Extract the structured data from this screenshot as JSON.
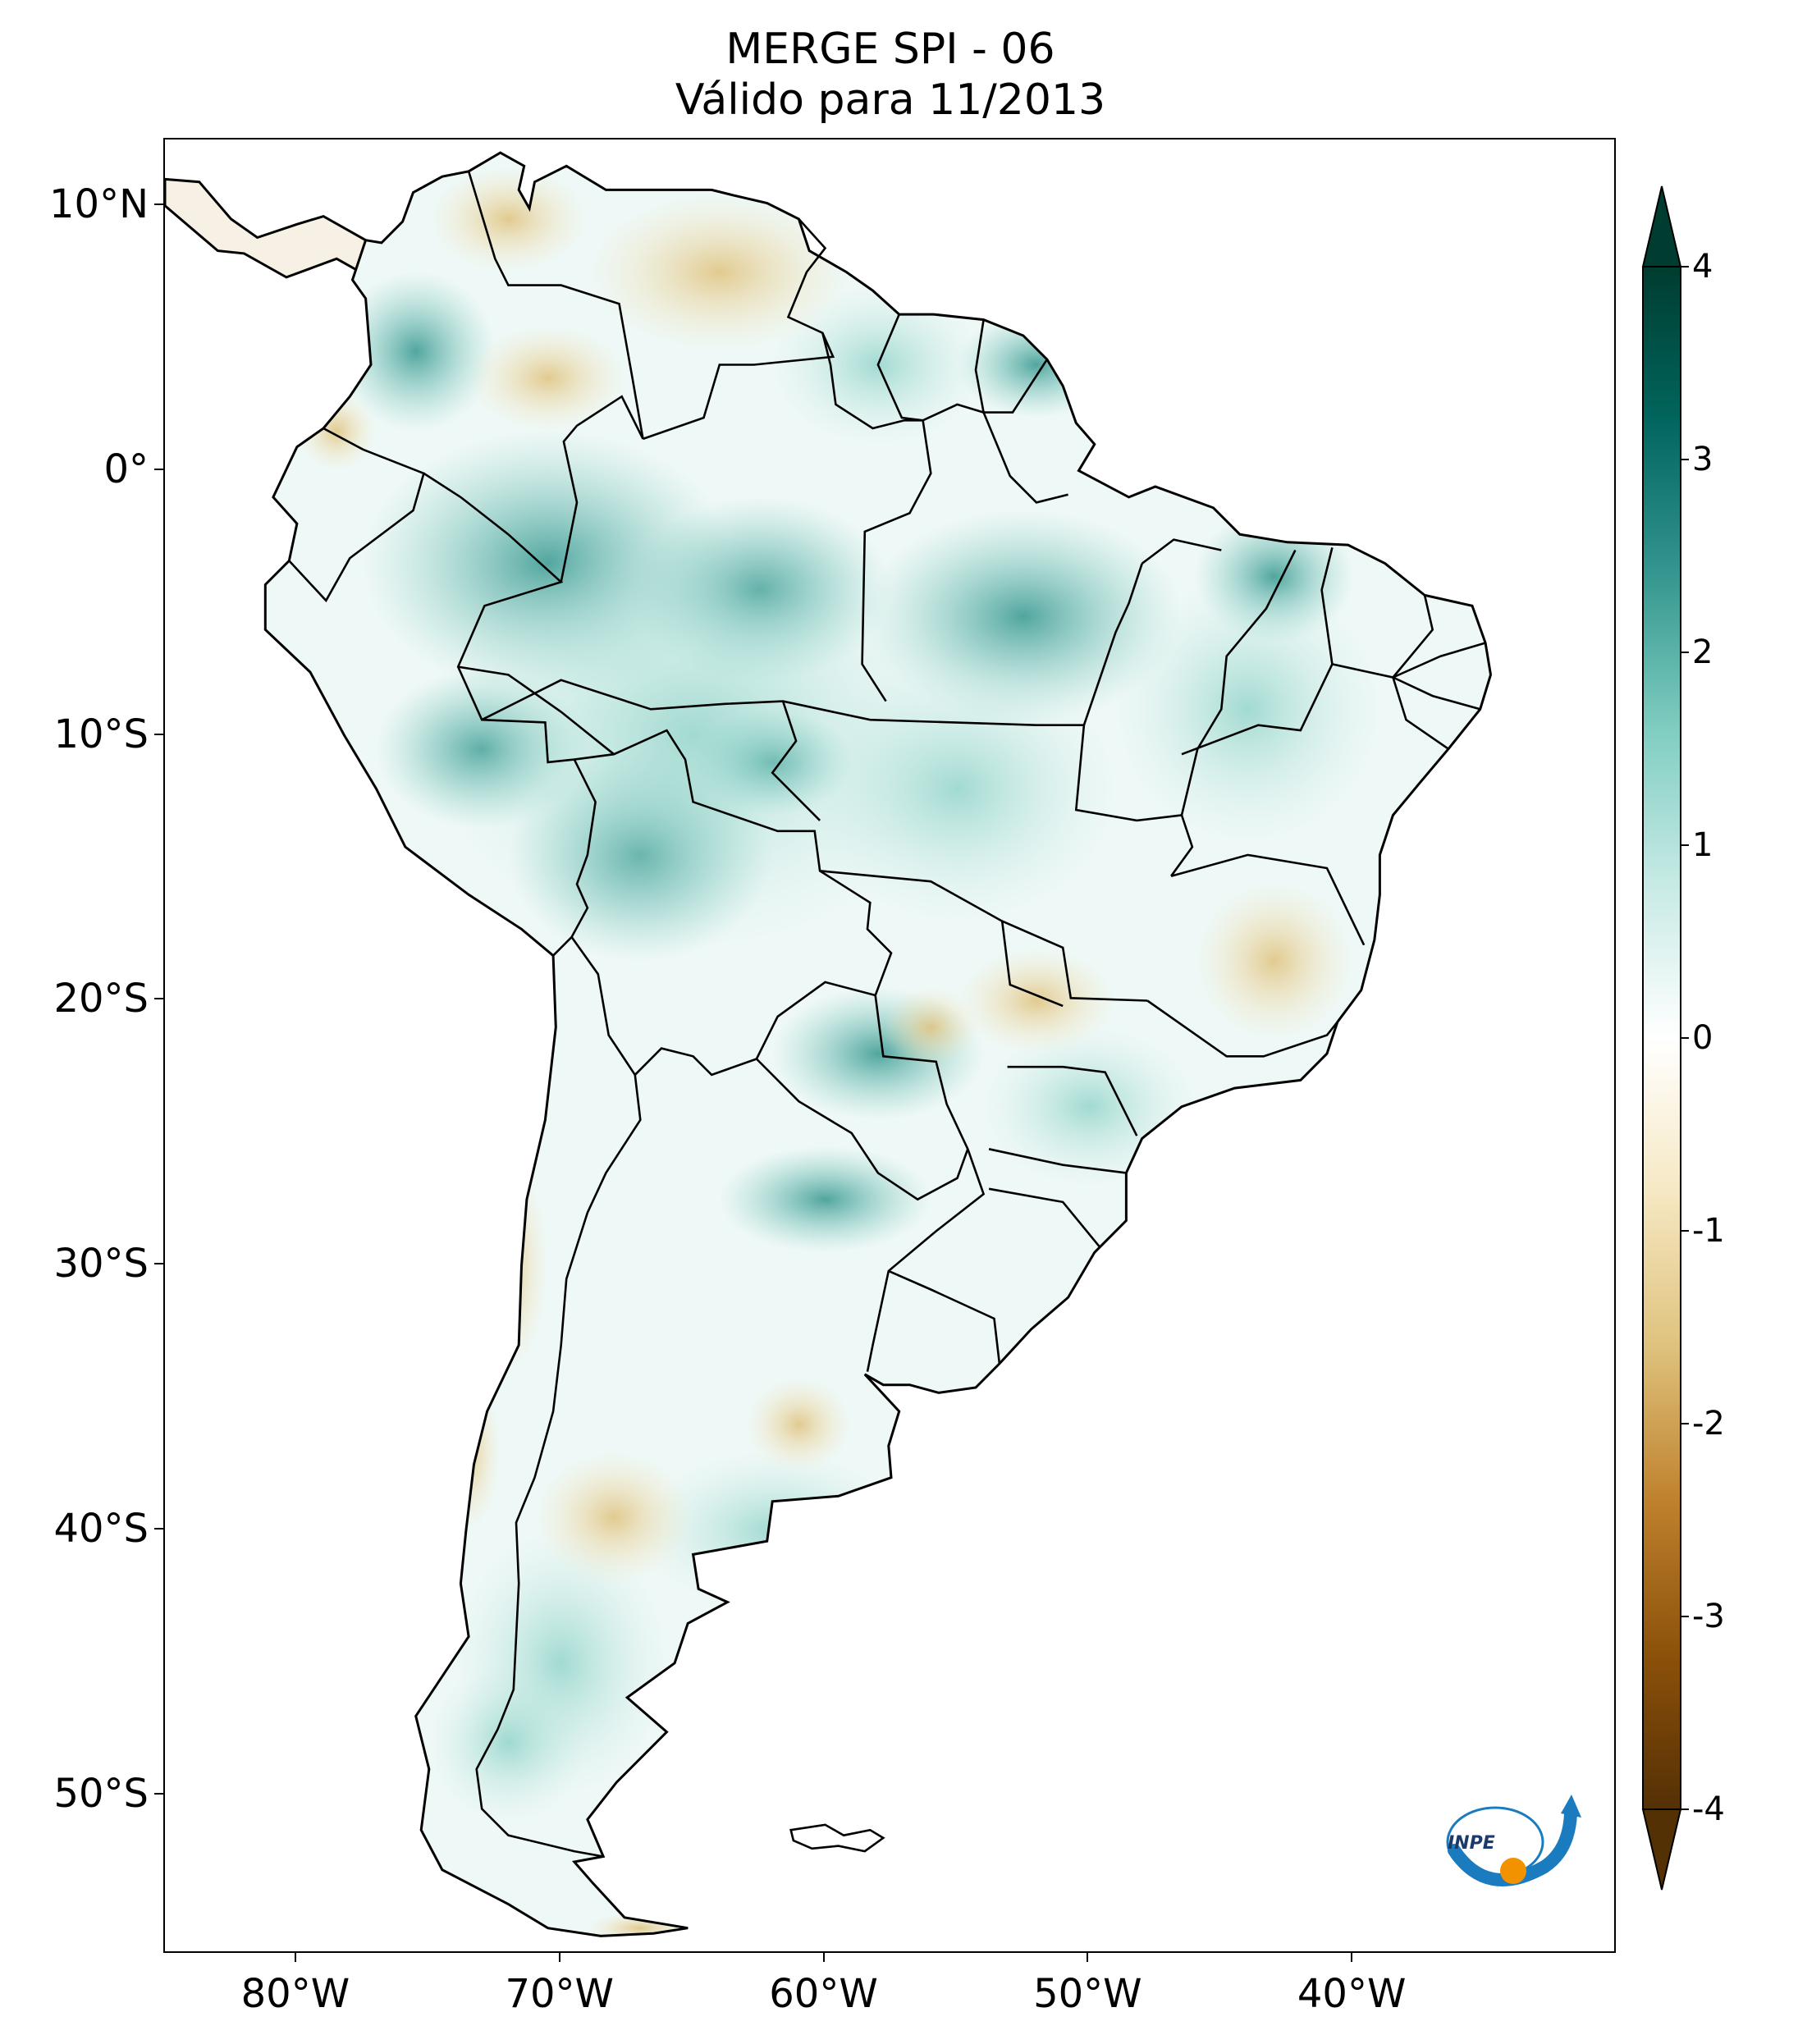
{
  "title_line1": "MERGE   SPI - 06",
  "title_line2": "Válido para 11/2013",
  "lat_labels": [
    {
      "lat": 10,
      "text": "10°N"
    },
    {
      "lat": 0,
      "text": "0°"
    },
    {
      "lat": -10,
      "text": "10°S"
    },
    {
      "lat": -20,
      "text": "20°S"
    },
    {
      "lat": -30,
      "text": "30°S"
    },
    {
      "lat": -40,
      "text": "40°S"
    },
    {
      "lat": -50,
      "text": "50°S"
    }
  ],
  "lon_labels": [
    {
      "lon": -80,
      "text": "80°W"
    },
    {
      "lon": -70,
      "text": "70°W"
    },
    {
      "lon": -60,
      "text": "60°W"
    },
    {
      "lon": -50,
      "text": "50°W"
    },
    {
      "lon": -40,
      "text": "40°W"
    }
  ],
  "colorbar": {
    "min": -4,
    "max": 4,
    "extend": "both",
    "ticks": [
      {
        "value": 4,
        "text": "4"
      },
      {
        "value": 3,
        "text": "3"
      },
      {
        "value": 2,
        "text": "2"
      },
      {
        "value": 1,
        "text": "1"
      },
      {
        "value": 0,
        "text": "0"
      },
      {
        "value": -1,
        "text": "-1"
      },
      {
        "value": -2,
        "text": "-2"
      },
      {
        "value": -3,
        "text": "-3"
      },
      {
        "value": -4,
        "text": "-4"
      }
    ],
    "colormap": "BrBG",
    "colors": [
      "#543005",
      "#8c510a",
      "#bf812d",
      "#dfc27d",
      "#f6e8c3",
      "#ffffff",
      "#c7eae5",
      "#80cdc1",
      "#35978f",
      "#01665e",
      "#003c30"
    ]
  },
  "map_extent": {
    "lon_min": -85,
    "lon_max": -30,
    "lat_min": -56,
    "lat_max": 12.5
  },
  "logo_text": "INPE",
  "colors": {
    "border": "#000000",
    "land_base": "#eef8f6",
    "wet": "#35978f",
    "dry": "#dfc27d"
  }
}
